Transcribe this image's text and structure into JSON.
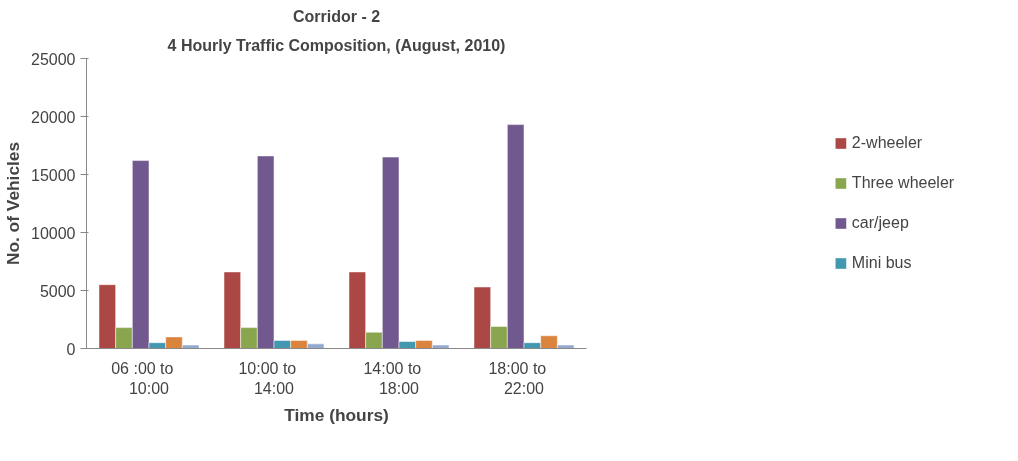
{
  "chart_data": {
    "type": "bar",
    "title": "Corridor - 2",
    "subtitle": "4 Hourly Traffic Composition, (August, 2010)",
    "xlabel": "Time (hours)",
    "ylabel": "No. of Vehicles",
    "categories": [
      "06 :00    to\n10:00",
      "10:00    to\n14:00",
      "14:00    to\n18:00",
      "18:00    to\n22:00"
    ],
    "series": [
      {
        "name": "2-wheeler",
        "color": "#ab4744",
        "values": [
          5500,
          6600,
          6600,
          5300
        ]
      },
      {
        "name": "Three wheeler",
        "color": "#89a54e",
        "values": [
          1800,
          1800,
          1400,
          1900
        ]
      },
      {
        "name": "car/jeep",
        "color": "#71588f",
        "values": [
          16200,
          16600,
          16500,
          19300
        ]
      },
      {
        "name": "Mini bus",
        "color": "#4198af",
        "values": [
          500,
          700,
          600,
          500
        ]
      },
      {
        "color": "#db843d",
        "values": [
          1000,
          700,
          700,
          1100
        ]
      },
      {
        "color": "#93a9cf",
        "values": [
          300,
          400,
          300,
          300
        ]
      }
    ],
    "ylim": [
      0,
      25000
    ],
    "yticks": [
      0,
      5000,
      10000,
      15000,
      20000,
      25000
    ],
    "grid": false,
    "legend": "right"
  }
}
